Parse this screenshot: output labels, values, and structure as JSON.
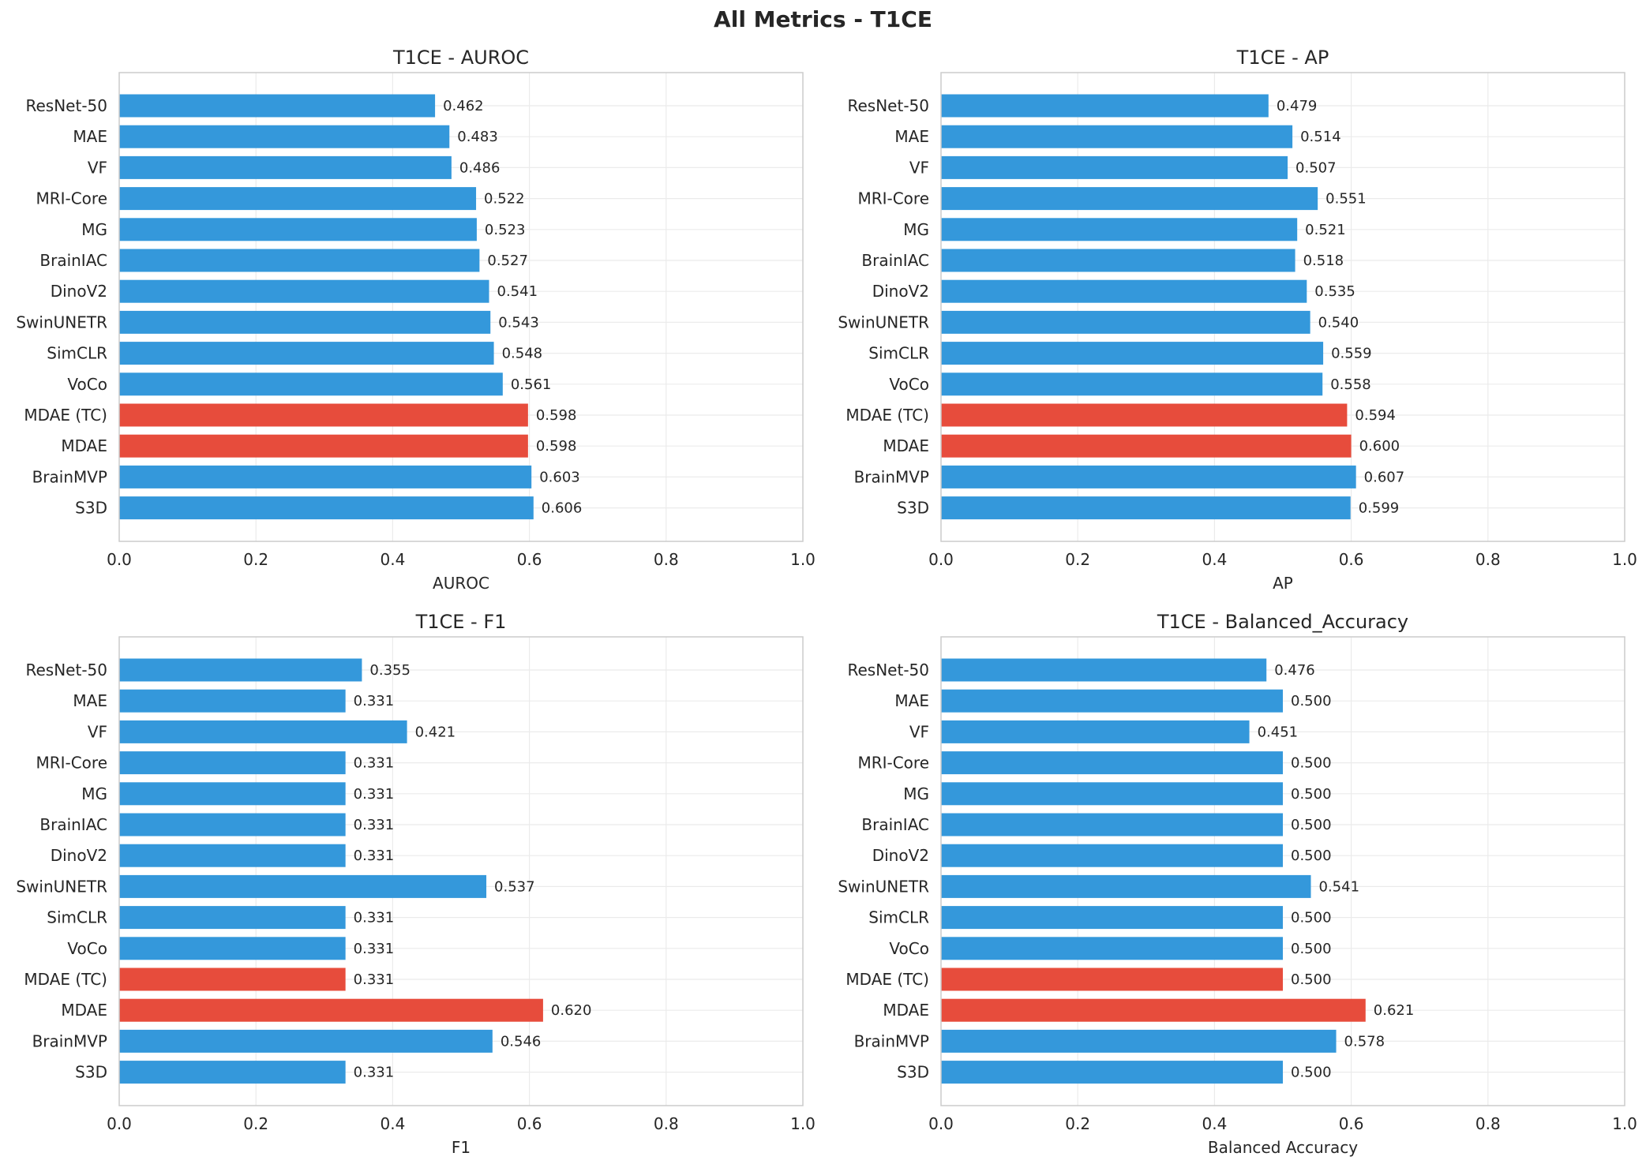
{
  "figure_title": "All Metrics - T1CE",
  "colors": {
    "default_bar": "#3498DB",
    "highlight_bar": "#E74C3C",
    "grid": "#EBEBEB",
    "frame": "#CCCCCC"
  },
  "chart_data": [
    {
      "type": "bar",
      "orientation": "horizontal",
      "title": "T1CE - AUROC",
      "xlabel": "AUROC",
      "ylabel": "",
      "xlim": [
        0,
        1.0
      ],
      "xticks": [
        "0.0",
        "0.2",
        "0.4",
        "0.6",
        "0.8",
        "1.0"
      ],
      "grid": true,
      "categories": [
        "ResNet-50",
        "MAE",
        "VF",
        "MRI-Core",
        "MG",
        "BrainIAC",
        "DinoV2",
        "SwinUNETR",
        "SimCLR",
        "VoCo",
        "MDAE (TC)",
        "MDAE",
        "BrainMVP",
        "S3D"
      ],
      "values": [
        0.462,
        0.483,
        0.486,
        0.522,
        0.523,
        0.527,
        0.541,
        0.543,
        0.548,
        0.561,
        0.598,
        0.598,
        0.603,
        0.606
      ],
      "labels": [
        "0.462",
        "0.483",
        "0.486",
        "0.522",
        "0.523",
        "0.527",
        "0.541",
        "0.543",
        "0.548",
        "0.561",
        "0.598",
        "0.598",
        "0.603",
        "0.606"
      ],
      "highlighted": [
        "MDAE (TC)",
        "MDAE"
      ]
    },
    {
      "type": "bar",
      "orientation": "horizontal",
      "title": "T1CE - AP",
      "xlabel": "AP",
      "ylabel": "",
      "xlim": [
        0,
        1.0
      ],
      "xticks": [
        "0.0",
        "0.2",
        "0.4",
        "0.6",
        "0.8",
        "1.0"
      ],
      "grid": true,
      "categories": [
        "ResNet-50",
        "MAE",
        "VF",
        "MRI-Core",
        "MG",
        "BrainIAC",
        "DinoV2",
        "SwinUNETR",
        "SimCLR",
        "VoCo",
        "MDAE (TC)",
        "MDAE",
        "BrainMVP",
        "S3D"
      ],
      "values": [
        0.479,
        0.514,
        0.507,
        0.551,
        0.521,
        0.518,
        0.535,
        0.54,
        0.559,
        0.558,
        0.594,
        0.6,
        0.607,
        0.599
      ],
      "labels": [
        "0.479",
        "0.514",
        "0.507",
        "0.551",
        "0.521",
        "0.518",
        "0.535",
        "0.540",
        "0.559",
        "0.558",
        "0.594",
        "0.600",
        "0.607",
        "0.599"
      ],
      "highlighted": [
        "MDAE (TC)",
        "MDAE"
      ]
    },
    {
      "type": "bar",
      "orientation": "horizontal",
      "title": "T1CE - F1",
      "xlabel": "F1",
      "ylabel": "",
      "xlim": [
        0,
        1.0
      ],
      "xticks": [
        "0.0",
        "0.2",
        "0.4",
        "0.6",
        "0.8",
        "1.0"
      ],
      "grid": true,
      "categories": [
        "ResNet-50",
        "MAE",
        "VF",
        "MRI-Core",
        "MG",
        "BrainIAC",
        "DinoV2",
        "SwinUNETR",
        "SimCLR",
        "VoCo",
        "MDAE (TC)",
        "MDAE",
        "BrainMVP",
        "S3D"
      ],
      "values": [
        0.355,
        0.331,
        0.421,
        0.331,
        0.331,
        0.331,
        0.331,
        0.537,
        0.331,
        0.331,
        0.331,
        0.62,
        0.546,
        0.331
      ],
      "labels": [
        "0.355",
        "0.331",
        "0.421",
        "0.331",
        "0.331",
        "0.331",
        "0.331",
        "0.537",
        "0.331",
        "0.331",
        "0.331",
        "0.620",
        "0.546",
        "0.331"
      ],
      "highlighted": [
        "MDAE (TC)",
        "MDAE"
      ]
    },
    {
      "type": "bar",
      "orientation": "horizontal",
      "title": "T1CE - Balanced_Accuracy",
      "xlabel": "Balanced Accuracy",
      "ylabel": "",
      "xlim": [
        0,
        1.0
      ],
      "xticks": [
        "0.0",
        "0.2",
        "0.4",
        "0.6",
        "0.8",
        "1.0"
      ],
      "grid": true,
      "categories": [
        "ResNet-50",
        "MAE",
        "VF",
        "MRI-Core",
        "MG",
        "BrainIAC",
        "DinoV2",
        "SwinUNETR",
        "SimCLR",
        "VoCo",
        "MDAE (TC)",
        "MDAE",
        "BrainMVP",
        "S3D"
      ],
      "values": [
        0.476,
        0.5,
        0.451,
        0.5,
        0.5,
        0.5,
        0.5,
        0.541,
        0.5,
        0.5,
        0.5,
        0.621,
        0.578,
        0.5
      ],
      "labels": [
        "0.476",
        "0.500",
        "0.451",
        "0.500",
        "0.500",
        "0.500",
        "0.500",
        "0.541",
        "0.500",
        "0.500",
        "0.500",
        "0.621",
        "0.578",
        "0.500"
      ],
      "highlighted": [
        "MDAE (TC)",
        "MDAE"
      ]
    }
  ]
}
